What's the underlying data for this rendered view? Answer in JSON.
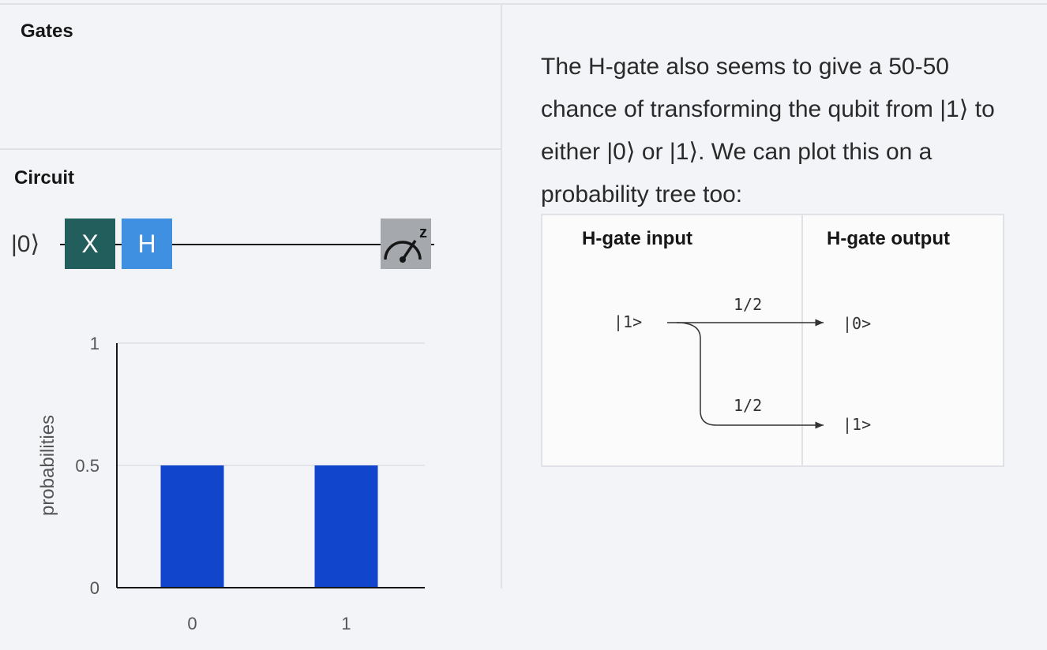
{
  "gates": {
    "title": "Gates"
  },
  "circuit": {
    "title": "Circuit",
    "qubit_label": "|0⟩",
    "gates": [
      {
        "label": "X",
        "color": "#225f5c"
      },
      {
        "label": "H",
        "color": "#3f90e0"
      }
    ],
    "measure_basis": "z",
    "measure_icon": "measurement-gauge-icon"
  },
  "chart_data": {
    "type": "bar",
    "categories": [
      "0",
      "1"
    ],
    "values": [
      0.5,
      0.5
    ],
    "title": "",
    "xlabel": "",
    "ylabel": "probabilities",
    "ylim": [
      0,
      1
    ],
    "yticks": [
      "0",
      "0.5",
      "1"
    ],
    "grid": true,
    "bar_color": "#1145cc"
  },
  "explanation": {
    "text": "The H-gate also seems to give a 50-50 chance of transforming the qubit from |1⟩ to either |0⟩ or |1⟩. We can plot this on a probability tree too:"
  },
  "tree": {
    "input_header": "H-gate input",
    "output_header": "H-gate output",
    "input_state": "|1>",
    "branches": [
      {
        "probability": "1/2",
        "output_state": "|0>"
      },
      {
        "probability": "1/2",
        "output_state": "|1>"
      }
    ]
  }
}
